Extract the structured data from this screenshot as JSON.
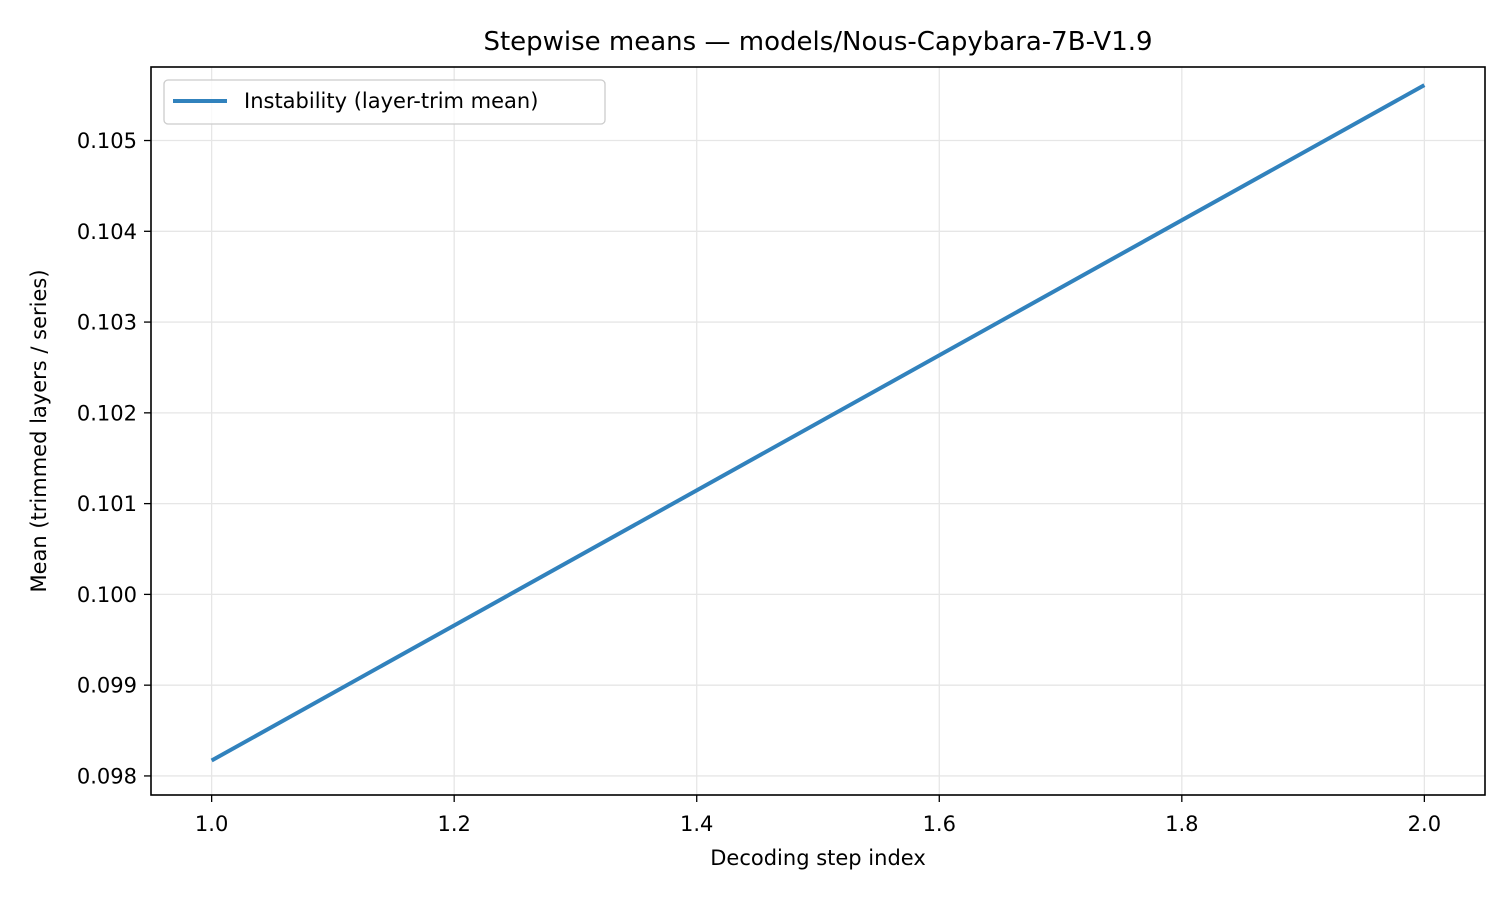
{
  "chart_data": {
    "type": "line",
    "title": "Stepwise means — models/Nous-Capybara-7B-V1.9",
    "xlabel": "Decoding step index",
    "ylabel": "Mean (trimmed layers / series)",
    "xlim": [
      0.95,
      2.05
    ],
    "ylim": [
      0.09779,
      0.10581
    ],
    "xticks": [
      1.0,
      1.2,
      1.4,
      1.6,
      1.8,
      2.0
    ],
    "xtick_labels": [
      "1.0",
      "1.2",
      "1.4",
      "1.6",
      "1.8",
      "2.0"
    ],
    "yticks": [
      0.098,
      0.099,
      0.1,
      0.101,
      0.102,
      0.103,
      0.104,
      0.105
    ],
    "ytick_labels": [
      "0.098",
      "0.099",
      "0.100",
      "0.101",
      "0.102",
      "0.103",
      "0.104",
      "0.105"
    ],
    "grid": true,
    "legend_position": "top-left",
    "series": [
      {
        "name": "Instability (layer-trim mean)",
        "color": "#3182bd",
        "x": [
          1.0,
          2.0
        ],
        "y": [
          0.09817,
          0.10561
        ]
      }
    ]
  }
}
